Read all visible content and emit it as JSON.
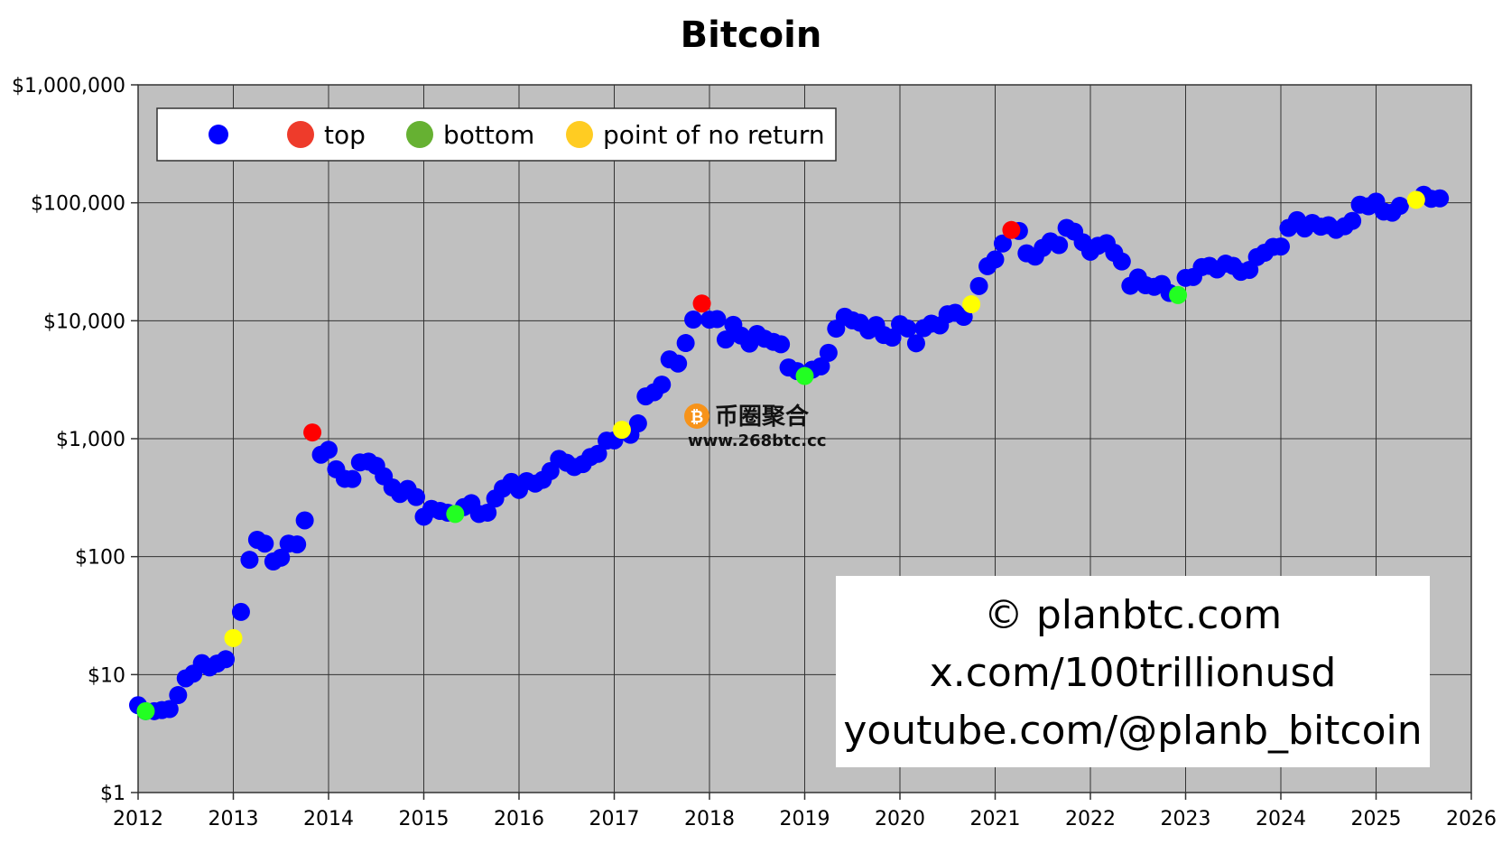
{
  "chart_data": {
    "type": "scatter",
    "title": "Bitcoin",
    "xlabel": "",
    "ylabel": "",
    "y_scale": "log",
    "xlim": [
      2012,
      2026
    ],
    "ylim": [
      1,
      1000000
    ],
    "x_ticks": [
      2012,
      2013,
      2014,
      2015,
      2016,
      2017,
      2018,
      2019,
      2020,
      2021,
      2022,
      2023,
      2024,
      2025,
      2026
    ],
    "x_tick_labels": [
      "2012",
      "2013",
      "2014",
      "2015",
      "2016",
      "2017",
      "2018",
      "2019",
      "2020",
      "2021",
      "2022",
      "2023",
      "2024",
      "2025",
      "2026"
    ],
    "y_ticks": [
      1,
      10,
      100,
      1000,
      10000,
      100000,
      1000000
    ],
    "y_tick_labels": [
      "$1",
      "$10",
      "$100",
      "$1,000",
      "$10,000",
      "$100,000",
      "$1,000,000"
    ],
    "grid": true,
    "background": "#c0c0c0",
    "legend_position": "top-left",
    "legend": [
      {
        "label": "",
        "color": "#0000ff"
      },
      {
        "label": "top",
        "color": "#ee3b2b"
      },
      {
        "label": "bottom",
        "color": "#66b132"
      },
      {
        "label": "point of no return",
        "color": "#ffcc22"
      }
    ],
    "series": [
      {
        "color": "#0000ff",
        "points": [
          [
            2012.0,
            5.5
          ],
          [
            2012.08,
            4.9
          ],
          [
            2012.17,
            4.9
          ],
          [
            2012.25,
            5.0
          ],
          [
            2012.33,
            5.1
          ],
          [
            2012.42,
            6.7
          ],
          [
            2012.5,
            9.3
          ],
          [
            2012.58,
            10.2
          ],
          [
            2012.67,
            12.5
          ],
          [
            2012.75,
            11.5
          ],
          [
            2012.83,
            12.4
          ],
          [
            2012.92,
            13.5
          ],
          [
            2013.08,
            34
          ],
          [
            2013.17,
            94
          ],
          [
            2013.25,
            139
          ],
          [
            2013.33,
            129
          ],
          [
            2013.42,
            91
          ],
          [
            2013.5,
            98
          ],
          [
            2013.58,
            129
          ],
          [
            2013.67,
            127
          ],
          [
            2013.75,
            203
          ],
          [
            2013.92,
            732
          ],
          [
            2014.0,
            805
          ],
          [
            2014.08,
            550
          ],
          [
            2014.17,
            457
          ],
          [
            2014.25,
            455
          ],
          [
            2014.33,
            630
          ],
          [
            2014.42,
            640
          ],
          [
            2014.5,
            590
          ],
          [
            2014.58,
            480
          ],
          [
            2014.67,
            386
          ],
          [
            2014.75,
            340
          ],
          [
            2014.83,
            375
          ],
          [
            2014.92,
            320
          ],
          [
            2015.0,
            218
          ],
          [
            2015.08,
            254
          ],
          [
            2015.17,
            244
          ],
          [
            2015.25,
            236
          ],
          [
            2015.42,
            263
          ],
          [
            2015.5,
            284
          ],
          [
            2015.58,
            230
          ],
          [
            2015.67,
            236
          ],
          [
            2015.75,
            311
          ],
          [
            2015.83,
            378
          ],
          [
            2015.92,
            430
          ],
          [
            2016.0,
            368
          ],
          [
            2016.08,
            437
          ],
          [
            2016.17,
            416
          ],
          [
            2016.25,
            448
          ],
          [
            2016.33,
            531
          ],
          [
            2016.42,
            674
          ],
          [
            2016.5,
            625
          ],
          [
            2016.58,
            575
          ],
          [
            2016.67,
            609
          ],
          [
            2016.75,
            700
          ],
          [
            2016.83,
            745
          ],
          [
            2016.92,
            963
          ],
          [
            2017.0,
            968
          ],
          [
            2017.17,
            1079
          ],
          [
            2017.25,
            1348
          ],
          [
            2017.33,
            2286
          ],
          [
            2017.42,
            2480
          ],
          [
            2017.5,
            2875
          ],
          [
            2017.58,
            4703
          ],
          [
            2017.67,
            4338
          ],
          [
            2017.75,
            6468
          ],
          [
            2017.83,
            10233
          ],
          [
            2018.0,
            10221
          ],
          [
            2018.08,
            10326
          ],
          [
            2018.17,
            6926
          ],
          [
            2018.25,
            9240
          ],
          [
            2018.33,
            7494
          ],
          [
            2018.42,
            6404
          ],
          [
            2018.5,
            7730
          ],
          [
            2018.58,
            7033
          ],
          [
            2018.67,
            6625
          ],
          [
            2018.75,
            6317
          ],
          [
            2018.83,
            4017
          ],
          [
            2018.92,
            3742
          ],
          [
            2019.08,
            3854
          ],
          [
            2019.17,
            4105
          ],
          [
            2019.25,
            5350
          ],
          [
            2019.33,
            8574
          ],
          [
            2019.42,
            10818
          ],
          [
            2019.5,
            10085
          ],
          [
            2019.58,
            9630
          ],
          [
            2019.67,
            8293
          ],
          [
            2019.75,
            9199
          ],
          [
            2019.83,
            7569
          ],
          [
            2019.92,
            7193
          ],
          [
            2020.0,
            9350
          ],
          [
            2020.08,
            8599
          ],
          [
            2020.17,
            6438
          ],
          [
            2020.25,
            8658
          ],
          [
            2020.33,
            9461
          ],
          [
            2020.42,
            9137
          ],
          [
            2020.5,
            11351
          ],
          [
            2020.58,
            11680
          ],
          [
            2020.67,
            10784
          ],
          [
            2020.83,
            19700
          ],
          [
            2020.92,
            29000
          ],
          [
            2021.0,
            33100
          ],
          [
            2021.08,
            45200
          ],
          [
            2021.25,
            57700
          ],
          [
            2021.33,
            37300
          ],
          [
            2021.42,
            35000
          ],
          [
            2021.5,
            41500
          ],
          [
            2021.58,
            47100
          ],
          [
            2021.67,
            43800
          ],
          [
            2021.75,
            61300
          ],
          [
            2021.83,
            57000
          ],
          [
            2021.92,
            46300
          ],
          [
            2022.0,
            38500
          ],
          [
            2022.08,
            43200
          ],
          [
            2022.17,
            45500
          ],
          [
            2022.25,
            37700
          ],
          [
            2022.33,
            31800
          ],
          [
            2022.42,
            19800
          ],
          [
            2022.5,
            23300
          ],
          [
            2022.58,
            20000
          ],
          [
            2022.67,
            19400
          ],
          [
            2022.75,
            20500
          ],
          [
            2022.83,
            17200
          ],
          [
            2023.0,
            23100
          ],
          [
            2023.08,
            23500
          ],
          [
            2023.17,
            28500
          ],
          [
            2023.25,
            29200
          ],
          [
            2023.33,
            27200
          ],
          [
            2023.42,
            30500
          ],
          [
            2023.5,
            29200
          ],
          [
            2023.58,
            26000
          ],
          [
            2023.67,
            27000
          ],
          [
            2023.75,
            34700
          ],
          [
            2023.83,
            37700
          ],
          [
            2023.92,
            42300
          ],
          [
            2024.0,
            42600
          ],
          [
            2024.08,
            61200
          ],
          [
            2024.17,
            71300
          ],
          [
            2024.25,
            60600
          ],
          [
            2024.33,
            67500
          ],
          [
            2024.42,
            62700
          ],
          [
            2024.5,
            64600
          ],
          [
            2024.58,
            59000
          ],
          [
            2024.67,
            63300
          ],
          [
            2024.75,
            70200
          ],
          [
            2024.83,
            96400
          ],
          [
            2024.92,
            93400
          ],
          [
            2025.0,
            102400
          ],
          [
            2025.08,
            84300
          ],
          [
            2025.17,
            82500
          ],
          [
            2025.25,
            94200
          ],
          [
            2025.5,
            117000
          ],
          [
            2025.58,
            108000
          ],
          [
            2025.67,
            109000
          ]
        ]
      },
      {
        "name": "top",
        "color": "#ff0000",
        "points": [
          [
            2013.83,
            1130
          ],
          [
            2017.92,
            14000
          ],
          [
            2021.17,
            58800
          ]
        ]
      },
      {
        "name": "bottom",
        "color": "#22ff22",
        "points": [
          [
            2012.08,
            4.9
          ],
          [
            2015.33,
            230
          ],
          [
            2019.0,
            3400
          ],
          [
            2022.92,
            16500
          ]
        ]
      },
      {
        "name": "point of no return",
        "color": "#ffff00",
        "points": [
          [
            2013.0,
            20.4
          ],
          [
            2017.08,
            1190
          ],
          [
            2020.75,
            13800
          ],
          [
            2025.42,
            106000
          ]
        ]
      }
    ]
  },
  "credit": {
    "lines": [
      "© planbtc.com",
      "x.com/100trillionusd",
      "youtube.com/@planb_bitcoin"
    ]
  },
  "watermark": {
    "text": "币圈聚合",
    "url": "www.268btc.cc",
    "logo_color": "#f7931a"
  }
}
